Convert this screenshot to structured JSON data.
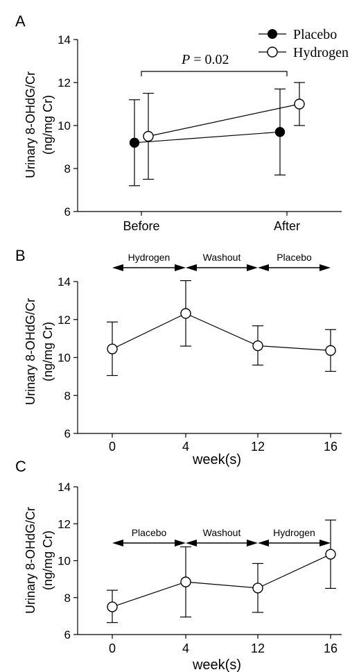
{
  "figure": {
    "colors": {
      "ink": "#000000",
      "background": "#ffffff",
      "filled_marker": "#000000",
      "open_marker": "#ffffff"
    }
  },
  "chart_data": [
    {
      "panel": "A",
      "type": "line",
      "categories": [
        "Before",
        "After"
      ],
      "ylabel_line1": "Urinary 8-OHdG/Cr",
      "ylabel_line2": "(ng/mg Cr)",
      "ylim": [
        6,
        14
      ],
      "yticks": [
        6,
        8,
        10,
        12,
        14
      ],
      "legend_position": "top-right",
      "annotation": {
        "italic": "P",
        "rest": " = 0.02"
      },
      "series": [
        {
          "name": "Placebo",
          "marker": "filled",
          "values": [
            9.2,
            9.7
          ],
          "err_low": [
            7.2,
            7.7
          ],
          "err_high": [
            11.2,
            11.7
          ]
        },
        {
          "name": "Hydrogen",
          "marker": "open",
          "values": [
            9.5,
            11.0
          ],
          "err_low": [
            7.5,
            10.0
          ],
          "err_high": [
            11.5,
            12.0
          ]
        }
      ]
    },
    {
      "panel": "B",
      "type": "line",
      "categories": [
        "0",
        "4",
        "12",
        "16"
      ],
      "xlabel": "week(s)",
      "ylabel_line1": "Urinary 8-OHdG/Cr",
      "ylabel_line2": "(ng/mg Cr)",
      "ylim": [
        6,
        14
      ],
      "yticks": [
        6,
        8,
        10,
        12,
        14
      ],
      "periods": [
        "Hydrogen",
        "Washout",
        "Placebo"
      ],
      "series": [
        {
          "marker": "open",
          "values": [
            10.45,
            12.32,
            10.62,
            10.37
          ],
          "err_low": [
            9.05,
            10.6,
            9.6,
            9.27
          ],
          "err_high": [
            11.87,
            14.05,
            11.67,
            11.47
          ]
        }
      ]
    },
    {
      "panel": "C",
      "type": "line",
      "categories": [
        "0",
        "4",
        "12",
        "16"
      ],
      "xlabel": "week(s)",
      "ylabel_line1": "Urinary 8-OHdG/Cr",
      "ylabel_line2": "(ng/mg Cr)",
      "ylim": [
        6,
        14
      ],
      "yticks": [
        6,
        8,
        10,
        12,
        14
      ],
      "periods": [
        "Placebo",
        "Washout",
        "Hydrogen"
      ],
      "series": [
        {
          "marker": "open",
          "values": [
            7.5,
            8.85,
            8.52,
            10.35
          ],
          "err_low": [
            6.65,
            6.95,
            7.2,
            8.5
          ],
          "err_high": [
            8.4,
            10.75,
            9.85,
            12.2
          ]
        }
      ]
    }
  ]
}
